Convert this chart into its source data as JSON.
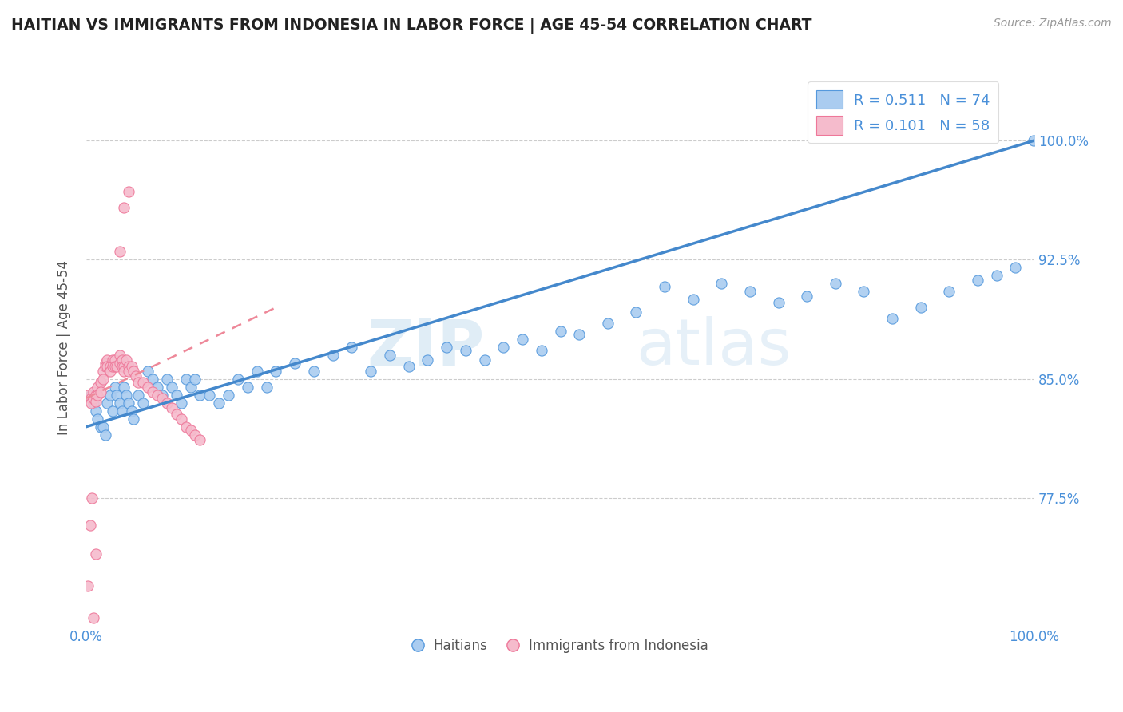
{
  "title": "HAITIAN VS IMMIGRANTS FROM INDONESIA IN LABOR FORCE | AGE 45-54 CORRELATION CHART",
  "source": "Source: ZipAtlas.com",
  "ylabel": "In Labor Force | Age 45-54",
  "yticks": [
    0.775,
    0.85,
    0.925,
    1.0
  ],
  "ytick_labels": [
    "77.5%",
    "85.0%",
    "92.5%",
    "100.0%"
  ],
  "xmin": 0.0,
  "xmax": 1.0,
  "ymin": 0.695,
  "ymax": 1.045,
  "legend_r_blue": "R = 0.511",
  "legend_n_blue": "N = 74",
  "legend_r_pink": "R = 0.101",
  "legend_n_pink": "N = 58",
  "legend_label_blue": "Haitians",
  "legend_label_pink": "Immigrants from Indonesia",
  "blue_fill": "#AACCF0",
  "pink_fill": "#F5BBCC",
  "blue_edge": "#5599DD",
  "pink_edge": "#EE7799",
  "blue_line": "#4488CC",
  "pink_line": "#EE8899",
  "watermark_zip": "ZIP",
  "watermark_atlas": "atlas",
  "blue_scatter_x": [
    0.005,
    0.008,
    0.01,
    0.012,
    0.015,
    0.018,
    0.02,
    0.022,
    0.025,
    0.028,
    0.03,
    0.032,
    0.035,
    0.038,
    0.04,
    0.042,
    0.045,
    0.048,
    0.05,
    0.055,
    0.06,
    0.065,
    0.07,
    0.075,
    0.08,
    0.085,
    0.09,
    0.095,
    0.1,
    0.105,
    0.11,
    0.115,
    0.12,
    0.13,
    0.14,
    0.15,
    0.16,
    0.17,
    0.18,
    0.19,
    0.2,
    0.22,
    0.24,
    0.26,
    0.28,
    0.3,
    0.32,
    0.34,
    0.36,
    0.38,
    0.4,
    0.42,
    0.44,
    0.46,
    0.48,
    0.5,
    0.52,
    0.55,
    0.58,
    0.61,
    0.64,
    0.67,
    0.7,
    0.73,
    0.76,
    0.79,
    0.82,
    0.85,
    0.88,
    0.91,
    0.94,
    0.96,
    0.98,
    0.999
  ],
  "blue_scatter_y": [
    0.84,
    0.835,
    0.83,
    0.825,
    0.82,
    0.82,
    0.815,
    0.835,
    0.84,
    0.83,
    0.845,
    0.84,
    0.835,
    0.83,
    0.845,
    0.84,
    0.835,
    0.83,
    0.825,
    0.84,
    0.835,
    0.855,
    0.85,
    0.845,
    0.84,
    0.85,
    0.845,
    0.84,
    0.835,
    0.85,
    0.845,
    0.85,
    0.84,
    0.84,
    0.835,
    0.84,
    0.85,
    0.845,
    0.855,
    0.845,
    0.855,
    0.86,
    0.855,
    0.865,
    0.87,
    0.855,
    0.865,
    0.858,
    0.862,
    0.87,
    0.868,
    0.862,
    0.87,
    0.875,
    0.868,
    0.88,
    0.878,
    0.885,
    0.892,
    0.908,
    0.9,
    0.91,
    0.905,
    0.898,
    0.902,
    0.91,
    0.905,
    0.888,
    0.895,
    0.905,
    0.912,
    0.915,
    0.92,
    1.0
  ],
  "pink_scatter_x": [
    0.002,
    0.005,
    0.005,
    0.008,
    0.008,
    0.01,
    0.01,
    0.012,
    0.012,
    0.015,
    0.015,
    0.018,
    0.018,
    0.02,
    0.02,
    0.022,
    0.022,
    0.025,
    0.025,
    0.028,
    0.028,
    0.03,
    0.03,
    0.032,
    0.035,
    0.035,
    0.038,
    0.038,
    0.04,
    0.04,
    0.042,
    0.045,
    0.045,
    0.048,
    0.05,
    0.052,
    0.055,
    0.06,
    0.065,
    0.07,
    0.075,
    0.08,
    0.085,
    0.09,
    0.095,
    0.1,
    0.105,
    0.11,
    0.115,
    0.12,
    0.002,
    0.004,
    0.006,
    0.008,
    0.01,
    0.035,
    0.04,
    0.045
  ],
  "pink_scatter_y": [
    0.84,
    0.838,
    0.835,
    0.842,
    0.838,
    0.84,
    0.836,
    0.845,
    0.84,
    0.848,
    0.842,
    0.855,
    0.85,
    0.86,
    0.858,
    0.862,
    0.858,
    0.858,
    0.855,
    0.862,
    0.858,
    0.862,
    0.858,
    0.858,
    0.865,
    0.86,
    0.862,
    0.858,
    0.858,
    0.855,
    0.862,
    0.858,
    0.855,
    0.858,
    0.855,
    0.852,
    0.848,
    0.848,
    0.845,
    0.842,
    0.84,
    0.838,
    0.835,
    0.832,
    0.828,
    0.825,
    0.82,
    0.818,
    0.815,
    0.812,
    0.72,
    0.758,
    0.775,
    0.7,
    0.74,
    0.93,
    0.958,
    0.968
  ],
  "blue_trend_x": [
    0.0,
    1.0
  ],
  "blue_trend_y": [
    0.82,
    1.0
  ],
  "pink_trend_x": [
    0.0,
    0.2
  ],
  "pink_trend_y": [
    0.838,
    0.895
  ]
}
